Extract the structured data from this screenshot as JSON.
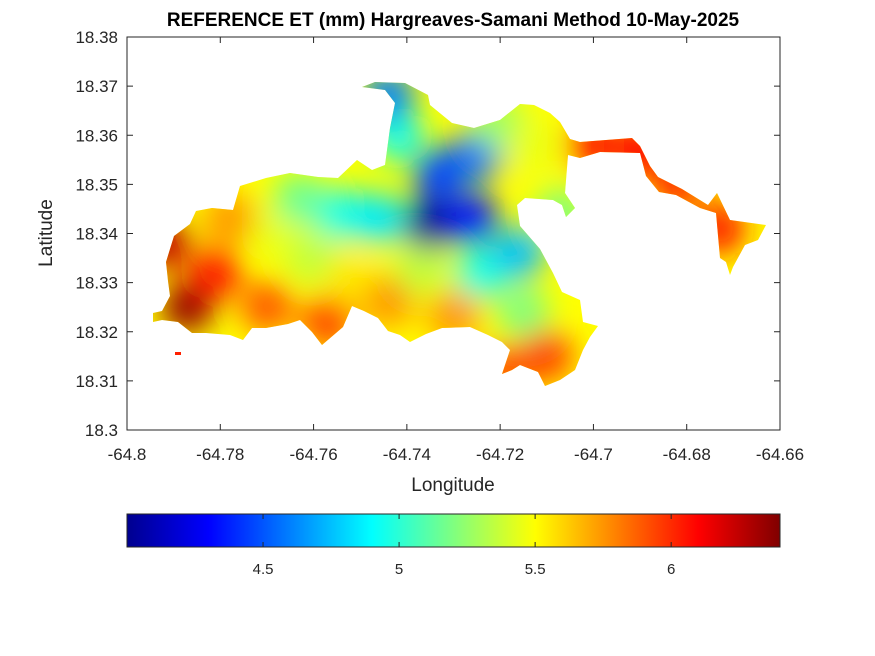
{
  "chart_data": {
    "type": "heatmap",
    "title": "REFERENCE ET (mm) Hargreaves-Samani Method  10-May-2025",
    "xlabel": "Longitude",
    "ylabel": "Latitude",
    "xlim": [
      -64.8,
      -64.66
    ],
    "ylim": [
      18.3,
      18.38
    ],
    "xticks": [
      -64.8,
      -64.78,
      -64.76,
      -64.74,
      -64.72,
      -64.7,
      -64.68,
      -64.66
    ],
    "xtick_labels": [
      "-64.8",
      "-64.78",
      "-64.76",
      "-64.74",
      "-64.72",
      "-64.7",
      "-64.68",
      "-64.66"
    ],
    "yticks": [
      18.3,
      18.31,
      18.32,
      18.33,
      18.34,
      18.35,
      18.36,
      18.37,
      18.38
    ],
    "ytick_labels": [
      "18.3",
      "18.31",
      "18.32",
      "18.33",
      "18.34",
      "18.35",
      "18.36",
      "18.37",
      "18.38"
    ],
    "grid": false,
    "colormap": "jet",
    "colorbar": {
      "location": "bottom",
      "range": [
        4.0,
        6.4
      ],
      "ticks": [
        4.5,
        5,
        5.5,
        6
      ],
      "tick_labels": [
        "4.5",
        "5",
        "5.5",
        "6"
      ]
    },
    "value_extremes": {
      "min": {
        "lon": -64.735,
        "lat": 18.342,
        "value": 4.05
      },
      "max": {
        "lon": -64.787,
        "lat": 18.325,
        "value": 6.35
      }
    },
    "approximate_field": [
      {
        "lon": -64.792,
        "lat": 18.338,
        "value": 6.25
      },
      {
        "lon": -64.787,
        "lat": 18.325,
        "value": 6.35
      },
      {
        "lon": -64.781,
        "lat": 18.332,
        "value": 6.05
      },
      {
        "lon": -64.778,
        "lat": 18.343,
        "value": 5.75
      },
      {
        "lon": -64.77,
        "lat": 18.325,
        "value": 5.9
      },
      {
        "lon": -64.768,
        "lat": 18.34,
        "value": 5.45
      },
      {
        "lon": -64.763,
        "lat": 18.347,
        "value": 5.15
      },
      {
        "lon": -64.76,
        "lat": 18.335,
        "value": 5.35
      },
      {
        "lon": -64.757,
        "lat": 18.322,
        "value": 5.95
      },
      {
        "lon": -64.754,
        "lat": 18.344,
        "value": 4.95
      },
      {
        "lon": -64.752,
        "lat": 18.331,
        "value": 5.55
      },
      {
        "lon": -64.746,
        "lat": 18.343,
        "value": 4.85
      },
      {
        "lon": -64.744,
        "lat": 18.326,
        "value": 5.75
      },
      {
        "lon": -64.742,
        "lat": 18.36,
        "value": 4.95
      },
      {
        "lon": -64.744,
        "lat": 18.368,
        "value": 4.6
      },
      {
        "lon": -64.737,
        "lat": 18.333,
        "value": 5.35
      },
      {
        "lon": -64.735,
        "lat": 18.342,
        "value": 4.05
      },
      {
        "lon": -64.733,
        "lat": 18.352,
        "value": 4.45
      },
      {
        "lon": -64.73,
        "lat": 18.323,
        "value": 5.75
      },
      {
        "lon": -64.726,
        "lat": 18.343,
        "value": 4.35
      },
      {
        "lon": -64.725,
        "lat": 18.356,
        "value": 4.55
      },
      {
        "lon": -64.724,
        "lat": 18.332,
        "value": 4.95
      },
      {
        "lon": -64.72,
        "lat": 18.362,
        "value": 5.25
      },
      {
        "lon": -64.719,
        "lat": 18.312,
        "value": 5.9
      },
      {
        "lon": -64.716,
        "lat": 18.336,
        "value": 4.75
      },
      {
        "lon": -64.715,
        "lat": 18.324,
        "value": 5.2
      },
      {
        "lon": -64.713,
        "lat": 18.358,
        "value": 5.45
      },
      {
        "lon": -64.71,
        "lat": 18.315,
        "value": 5.95
      },
      {
        "lon": -64.707,
        "lat": 18.344,
        "value": 5.2
      },
      {
        "lon": -64.7,
        "lat": 18.358,
        "value": 6.05
      },
      {
        "lon": -64.69,
        "lat": 18.357,
        "value": 6.1
      },
      {
        "lon": -64.682,
        "lat": 18.35,
        "value": 6.0
      },
      {
        "lon": -64.673,
        "lat": 18.341,
        "value": 6.05
      }
    ]
  }
}
